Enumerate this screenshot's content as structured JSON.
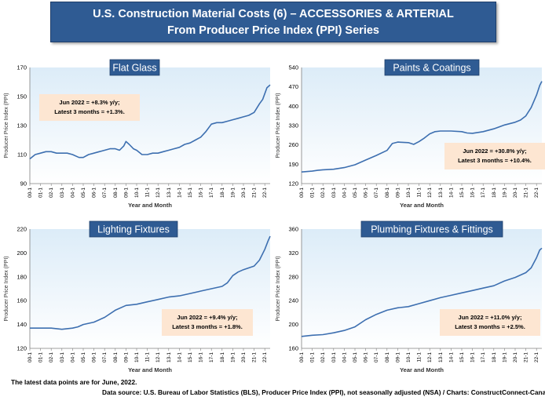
{
  "header": {
    "title_line1": "U.S. Construction Material Costs (6) – ACCESSORIES & ARTERIAL",
    "title_line2": "From Producer Price Index (PPI) Series"
  },
  "footer": {
    "note": "The latest data points are for June, 2022.",
    "source": "Data source: U.S. Bureau of Labor Statistics (BLS), Producer Price Index (PPI), not seasonally adjusted (NSA) / Charts: ConstructConnect-CanaData."
  },
  "colors": {
    "banner": "#2f5b93",
    "line": "#3d6fb0",
    "annotation_bg": "#fde6d2",
    "plot_bg_top": "#dcecf8"
  },
  "chart_data": [
    {
      "type": "line",
      "title": "Flat Glass",
      "xlabel": "Year and Month",
      "ylabel": "Producer Price Index (PPI)",
      "ylim": [
        90,
        170
      ],
      "yticks": [
        90,
        110,
        130,
        150,
        170
      ],
      "x_ticks": [
        "00-1",
        "01-1",
        "02-1",
        "03-1",
        "04-1",
        "05-1",
        "06-1",
        "07-1",
        "08-1",
        "09-1",
        "10-1",
        "11-1",
        "12-1",
        "13-1",
        "14-1",
        "15-1",
        "16-1",
        "17-1",
        "18-1",
        "19-1",
        "20-1",
        "21-1",
        "22-1"
      ],
      "x_start": 2000.0,
      "x_end": 2022.5,
      "annotation": [
        "Jun 2022 = +8.3% y/y;",
        "Latest 3 months = +1.3%."
      ],
      "points": [
        [
          2000.0,
          107
        ],
        [
          2000.5,
          110
        ],
        [
          2001.0,
          111
        ],
        [
          2001.5,
          112
        ],
        [
          2002.0,
          112
        ],
        [
          2002.5,
          111
        ],
        [
          2003.0,
          111
        ],
        [
          2003.5,
          111
        ],
        [
          2004.0,
          110
        ],
        [
          2004.6,
          108
        ],
        [
          2005.0,
          108
        ],
        [
          2005.5,
          110
        ],
        [
          2006.0,
          111
        ],
        [
          2006.5,
          112
        ],
        [
          2007.0,
          113
        ],
        [
          2007.5,
          114
        ],
        [
          2008.0,
          114
        ],
        [
          2008.4,
          113
        ],
        [
          2008.8,
          116
        ],
        [
          2009.0,
          119
        ],
        [
          2009.3,
          117
        ],
        [
          2009.7,
          114
        ],
        [
          2010.0,
          113
        ],
        [
          2010.5,
          110
        ],
        [
          2011.0,
          110
        ],
        [
          2011.5,
          111
        ],
        [
          2012.0,
          111
        ],
        [
          2012.5,
          112
        ],
        [
          2013.0,
          113
        ],
        [
          2013.5,
          114
        ],
        [
          2014.0,
          115
        ],
        [
          2014.5,
          117
        ],
        [
          2015.0,
          118
        ],
        [
          2015.5,
          120
        ],
        [
          2016.0,
          122
        ],
        [
          2016.5,
          126
        ],
        [
          2017.0,
          131
        ],
        [
          2017.5,
          132
        ],
        [
          2018.0,
          132
        ],
        [
          2018.5,
          133
        ],
        [
          2019.0,
          134
        ],
        [
          2019.5,
          135
        ],
        [
          2020.0,
          136
        ],
        [
          2020.5,
          137
        ],
        [
          2021.0,
          139
        ],
        [
          2021.5,
          145
        ],
        [
          2021.8,
          148
        ],
        [
          2022.0,
          152
        ],
        [
          2022.2,
          156
        ],
        [
          2022.5,
          158
        ]
      ]
    },
    {
      "type": "line",
      "title": "Paints & Coatings",
      "xlabel": "Year and Month",
      "ylabel": "Producer Price Index (PPI)",
      "ylim": [
        120,
        540
      ],
      "yticks": [
        120,
        190,
        260,
        330,
        400,
        470,
        540
      ],
      "x_ticks": [
        "00-1",
        "01-1",
        "02-1",
        "03-1",
        "04-1",
        "05-1",
        "06-1",
        "07-1",
        "08-1",
        "09-1",
        "10-1",
        "11-1",
        "12-1",
        "13-1",
        "14-1",
        "15-1",
        "16-1",
        "17-1",
        "18-1",
        "19-1",
        "20-1",
        "21-1",
        "22-1"
      ],
      "x_start": 2000.0,
      "x_end": 2022.5,
      "annotation": [
        "Jun 2022 = +30.8% y/y;",
        "Latest 3 months = +10.4%."
      ],
      "points": [
        [
          2000.0,
          162
        ],
        [
          2001.0,
          165
        ],
        [
          2001.5,
          168
        ],
        [
          2002.0,
          170
        ],
        [
          2003.0,
          172
        ],
        [
          2004.0,
          178
        ],
        [
          2005.0,
          188
        ],
        [
          2006.0,
          205
        ],
        [
          2007.0,
          222
        ],
        [
          2008.0,
          240
        ],
        [
          2008.5,
          265
        ],
        [
          2009.0,
          270
        ],
        [
          2010.0,
          268
        ],
        [
          2010.5,
          262
        ],
        [
          2011.0,
          272
        ],
        [
          2011.5,
          285
        ],
        [
          2012.0,
          300
        ],
        [
          2012.5,
          308
        ],
        [
          2013.0,
          310
        ],
        [
          2014.0,
          310
        ],
        [
          2015.0,
          308
        ],
        [
          2015.5,
          303
        ],
        [
          2016.0,
          302
        ],
        [
          2017.0,
          308
        ],
        [
          2018.0,
          318
        ],
        [
          2019.0,
          332
        ],
        [
          2020.0,
          342
        ],
        [
          2020.5,
          350
        ],
        [
          2021.0,
          365
        ],
        [
          2021.5,
          395
        ],
        [
          2022.0,
          440
        ],
        [
          2022.3,
          475
        ],
        [
          2022.5,
          490
        ]
      ]
    },
    {
      "type": "line",
      "title": "Lighting Fixtures",
      "xlabel": "Year and Month",
      "ylabel": "Producer Price Index (PPI)",
      "ylim": [
        120,
        220
      ],
      "yticks": [
        120,
        140,
        160,
        180,
        200,
        220
      ],
      "x_ticks": [
        "00-1",
        "01-1",
        "02-1",
        "03-1",
        "04-1",
        "05-1",
        "06-1",
        "07-1",
        "08-1",
        "09-1",
        "10-1",
        "11-1",
        "12-1",
        "13-1",
        "14-1",
        "15-1",
        "16-1",
        "17-1",
        "18-1",
        "19-1",
        "20-1",
        "21-1",
        "22-1"
      ],
      "x_start": 2000.0,
      "x_end": 2022.5,
      "annotation": [
        "Jun 2022 = +9.4% y/y;",
        "Latest 3 months = +1.8%."
      ],
      "points": [
        [
          2000.0,
          137
        ],
        [
          2001.0,
          137
        ],
        [
          2002.0,
          137
        ],
        [
          2003.0,
          136
        ],
        [
          2004.0,
          137
        ],
        [
          2004.5,
          138
        ],
        [
          2005.0,
          140
        ],
        [
          2006.0,
          142
        ],
        [
          2007.0,
          146
        ],
        [
          2008.0,
          152
        ],
        [
          2009.0,
          156
        ],
        [
          2010.0,
          157
        ],
        [
          2011.0,
          159
        ],
        [
          2012.0,
          161
        ],
        [
          2013.0,
          163
        ],
        [
          2014.0,
          164
        ],
        [
          2015.0,
          166
        ],
        [
          2016.0,
          168
        ],
        [
          2017.0,
          170
        ],
        [
          2018.0,
          172
        ],
        [
          2018.5,
          175
        ],
        [
          2019.0,
          181
        ],
        [
          2019.5,
          184
        ],
        [
          2020.0,
          186
        ],
        [
          2021.0,
          189
        ],
        [
          2021.5,
          194
        ],
        [
          2022.0,
          203
        ],
        [
          2022.3,
          210
        ],
        [
          2022.5,
          214
        ]
      ]
    },
    {
      "type": "line",
      "title": "Plumbing Fixtures & Fittings",
      "xlabel": "Year and Month",
      "ylabel": "Producer Price Index (PPI)",
      "ylim": [
        160,
        360
      ],
      "yticks": [
        160,
        200,
        240,
        280,
        320,
        360
      ],
      "x_ticks": [
        "00-1",
        "01-1",
        "02-1",
        "03-1",
        "04-1",
        "05-1",
        "06-1",
        "07-1",
        "08-1",
        "09-1",
        "10-1",
        "11-1",
        "12-1",
        "13-1",
        "14-1",
        "15-1",
        "16-1",
        "17-1",
        "18-1",
        "19-1",
        "20-1",
        "21-1",
        "22-1"
      ],
      "x_start": 2000.0,
      "x_end": 2022.5,
      "annotation": [
        "Jun 2022 = +11.0% y/y;",
        "Latest 3 months = +2.5%."
      ],
      "points": [
        [
          2000.0,
          180
        ],
        [
          2001.0,
          182
        ],
        [
          2002.0,
          183
        ],
        [
          2003.0,
          186
        ],
        [
          2004.0,
          190
        ],
        [
          2005.0,
          196
        ],
        [
          2006.0,
          208
        ],
        [
          2007.0,
          217
        ],
        [
          2008.0,
          224
        ],
        [
          2009.0,
          228
        ],
        [
          2010.0,
          230
        ],
        [
          2011.0,
          235
        ],
        [
          2012.0,
          240
        ],
        [
          2013.0,
          245
        ],
        [
          2014.0,
          249
        ],
        [
          2015.0,
          253
        ],
        [
          2016.0,
          257
        ],
        [
          2017.0,
          261
        ],
        [
          2018.0,
          265
        ],
        [
          2019.0,
          273
        ],
        [
          2020.0,
          279
        ],
        [
          2021.0,
          287
        ],
        [
          2021.5,
          295
        ],
        [
          2022.0,
          312
        ],
        [
          2022.3,
          325
        ],
        [
          2022.5,
          328
        ]
      ]
    }
  ]
}
